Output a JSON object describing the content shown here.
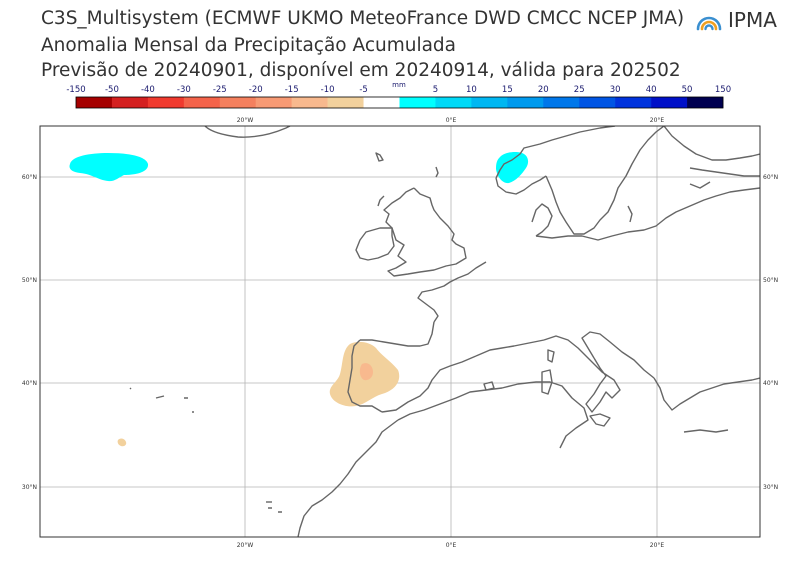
{
  "title": {
    "line1": "C3S_Multisystem  (ECMWF UKMO MeteoFrance DWD CMCC NCEP JMA)",
    "line2": "Anomalia Mensal da Precipitação Acumulada",
    "line3": "Previsão de 20240901, disponível em 20240914, válida para 202502"
  },
  "logo": {
    "text": "IPMA",
    "icon": "ipma-sun-arcs-icon"
  },
  "colorbar": {
    "unit": "mm",
    "ticks": [
      "-150",
      "-50",
      "-40",
      "-30",
      "-25",
      "-20",
      "-15",
      "-10",
      "-5",
      "5",
      "10",
      "15",
      "20",
      "25",
      "30",
      "40",
      "50",
      "150"
    ],
    "colors": [
      "#a50000",
      "#d42020",
      "#f03a2e",
      "#f4634a",
      "#f4805e",
      "#f79a74",
      "#f8b98e",
      "#f2d19d",
      "#ffffff",
      "#00ffff",
      "#00d9f7",
      "#00b7f2",
      "#009aee",
      "#0077ea",
      "#0055e4",
      "#0033dd",
      "#0010c8",
      "#000050"
    ]
  },
  "map": {
    "lon_labels": [
      "20°W",
      "0°E",
      "20°E"
    ],
    "lat_labels": [
      "60°N",
      "50°N",
      "40°N",
      "30°N"
    ],
    "gridline_color": "#b4b4b4",
    "coast_color": "#666666"
  }
}
